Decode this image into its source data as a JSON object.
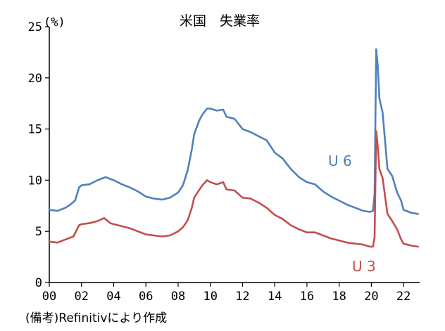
{
  "chart_data": {
    "type": "line",
    "title": "米国　失業率",
    "yunit": "(%)",
    "ylim": [
      0,
      25
    ],
    "yticks": [
      0,
      5,
      10,
      15,
      20,
      25
    ],
    "xlim": [
      2000,
      2023
    ],
    "xticks": [
      {
        "x": 2000,
        "label": "00"
      },
      {
        "x": 2002,
        "label": "02"
      },
      {
        "x": 2004,
        "label": "04"
      },
      {
        "x": 2006,
        "label": "06"
      },
      {
        "x": 2008,
        "label": "08"
      },
      {
        "x": 2010,
        "label": "10"
      },
      {
        "x": 2012,
        "label": "12"
      },
      {
        "x": 2014,
        "label": "14"
      },
      {
        "x": 2016,
        "label": "16"
      },
      {
        "x": 2018,
        "label": "18"
      },
      {
        "x": 2020,
        "label": "20"
      },
      {
        "x": 2022,
        "label": "22"
      }
    ],
    "grid": false,
    "legend": "inline labels",
    "series": [
      {
        "name": "U 6",
        "color": "#4f81bd",
        "points": [
          [
            2000.0,
            7.1
          ],
          [
            2000.5,
            7.0
          ],
          [
            2001.0,
            7.3
          ],
          [
            2001.3,
            7.6
          ],
          [
            2001.6,
            8.0
          ],
          [
            2001.85,
            9.3
          ],
          [
            2002.0,
            9.5
          ],
          [
            2002.5,
            9.6
          ],
          [
            2003.0,
            10.0
          ],
          [
            2003.5,
            10.3
          ],
          [
            2003.8,
            10.1
          ],
          [
            2004.0,
            10.0
          ],
          [
            2004.5,
            9.6
          ],
          [
            2005.0,
            9.3
          ],
          [
            2005.5,
            8.9
          ],
          [
            2006.0,
            8.4
          ],
          [
            2006.5,
            8.2
          ],
          [
            2007.0,
            8.1
          ],
          [
            2007.5,
            8.3
          ],
          [
            2008.0,
            8.8
          ],
          [
            2008.3,
            9.5
          ],
          [
            2008.6,
            11.0
          ],
          [
            2008.85,
            13.0
          ],
          [
            2009.0,
            14.5
          ],
          [
            2009.3,
            15.8
          ],
          [
            2009.5,
            16.4
          ],
          [
            2009.8,
            17.0
          ],
          [
            2010.0,
            17.0
          ],
          [
            2010.4,
            16.8
          ],
          [
            2010.8,
            16.9
          ],
          [
            2011.0,
            16.2
          ],
          [
            2011.5,
            16.0
          ],
          [
            2012.0,
            15.0
          ],
          [
            2012.5,
            14.7
          ],
          [
            2013.0,
            14.3
          ],
          [
            2013.5,
            13.9
          ],
          [
            2014.0,
            12.7
          ],
          [
            2014.5,
            12.1
          ],
          [
            2015.0,
            11.1
          ],
          [
            2015.5,
            10.3
          ],
          [
            2016.0,
            9.8
          ],
          [
            2016.5,
            9.6
          ],
          [
            2017.0,
            8.9
          ],
          [
            2017.5,
            8.4
          ],
          [
            2018.0,
            8.0
          ],
          [
            2018.5,
            7.6
          ],
          [
            2019.0,
            7.3
          ],
          [
            2019.5,
            7.0
          ],
          [
            2019.9,
            6.9
          ],
          [
            2020.1,
            7.0
          ],
          [
            2020.2,
            8.7
          ],
          [
            2020.3,
            22.8
          ],
          [
            2020.4,
            21.2
          ],
          [
            2020.5,
            18.0
          ],
          [
            2020.7,
            16.6
          ],
          [
            2021.0,
            11.1
          ],
          [
            2021.3,
            10.4
          ],
          [
            2021.6,
            8.8
          ],
          [
            2021.85,
            8.0
          ],
          [
            2022.0,
            7.1
          ],
          [
            2022.5,
            6.8
          ],
          [
            2022.9,
            6.7
          ]
        ]
      },
      {
        "name": "U 3",
        "color": "#c0504d",
        "points": [
          [
            2000.0,
            4.0
          ],
          [
            2000.5,
            3.9
          ],
          [
            2001.0,
            4.2
          ],
          [
            2001.5,
            4.5
          ],
          [
            2001.85,
            5.6
          ],
          [
            2002.0,
            5.7
          ],
          [
            2002.5,
            5.8
          ],
          [
            2003.0,
            6.0
          ],
          [
            2003.4,
            6.3
          ],
          [
            2003.8,
            5.8
          ],
          [
            2004.0,
            5.7
          ],
          [
            2004.5,
            5.5
          ],
          [
            2005.0,
            5.3
          ],
          [
            2005.5,
            5.0
          ],
          [
            2006.0,
            4.7
          ],
          [
            2006.5,
            4.6
          ],
          [
            2007.0,
            4.5
          ],
          [
            2007.5,
            4.6
          ],
          [
            2008.0,
            5.0
          ],
          [
            2008.3,
            5.4
          ],
          [
            2008.6,
            6.1
          ],
          [
            2008.85,
            7.3
          ],
          [
            2009.0,
            8.3
          ],
          [
            2009.5,
            9.5
          ],
          [
            2009.8,
            10.0
          ],
          [
            2010.0,
            9.8
          ],
          [
            2010.4,
            9.6
          ],
          [
            2010.8,
            9.8
          ],
          [
            2011.0,
            9.1
          ],
          [
            2011.5,
            9.0
          ],
          [
            2012.0,
            8.3
          ],
          [
            2012.5,
            8.2
          ],
          [
            2013.0,
            7.8
          ],
          [
            2013.5,
            7.3
          ],
          [
            2014.0,
            6.6
          ],
          [
            2014.5,
            6.2
          ],
          [
            2015.0,
            5.6
          ],
          [
            2015.5,
            5.2
          ],
          [
            2016.0,
            4.9
          ],
          [
            2016.5,
            4.9
          ],
          [
            2017.0,
            4.6
          ],
          [
            2017.5,
            4.3
          ],
          [
            2018.0,
            4.1
          ],
          [
            2018.5,
            3.9
          ],
          [
            2019.0,
            3.8
          ],
          [
            2019.5,
            3.7
          ],
          [
            2019.9,
            3.5
          ],
          [
            2020.1,
            3.5
          ],
          [
            2020.2,
            4.4
          ],
          [
            2020.3,
            14.8
          ],
          [
            2020.4,
            13.3
          ],
          [
            2020.5,
            11.1
          ],
          [
            2020.7,
            10.2
          ],
          [
            2021.0,
            6.7
          ],
          [
            2021.3,
            6.0
          ],
          [
            2021.6,
            5.2
          ],
          [
            2021.85,
            4.2
          ],
          [
            2022.0,
            3.8
          ],
          [
            2022.5,
            3.6
          ],
          [
            2022.9,
            3.5
          ]
        ]
      }
    ]
  },
  "labels": {
    "u6": "U 6",
    "u3": "U 3",
    "source": "(備考)Refinitivにより作成"
  }
}
